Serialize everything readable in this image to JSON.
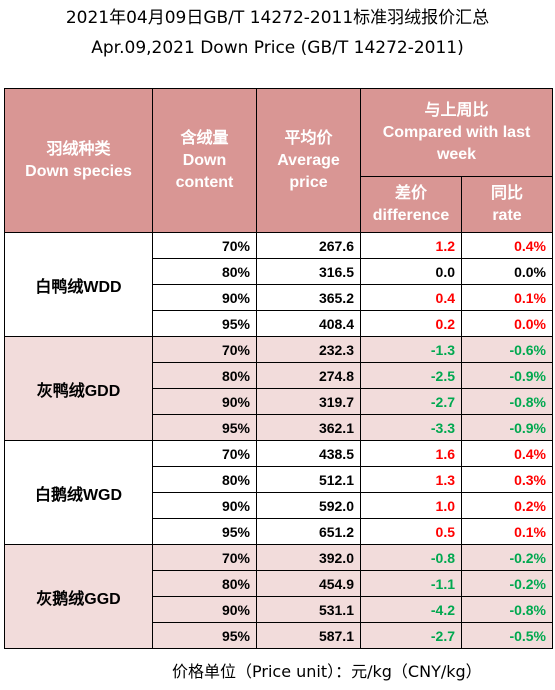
{
  "title_cn": "2021年04月09日GB/T 14272-2011标准羽绒报价汇总",
  "title_en": "Apr.09,2021 Down Price (GB/T 14272-2011)",
  "headers": {
    "species": "羽绒种类\nDown species",
    "content": "含绒量\nDown\ncontent",
    "average": "平均价\nAverage\nprice",
    "compared": "与上周比\nCompared with last\nweek",
    "difference": "差价\ndifference",
    "rate": "同比\nrate"
  },
  "groups": [
    {
      "species": "白鸭绒WDD",
      "rows": [
        {
          "content": "70%",
          "price": "267.6",
          "diff": "1.2",
          "rate": "0.4%",
          "trend": "pos"
        },
        {
          "content": "80%",
          "price": "316.5",
          "diff": "0.0",
          "rate": "0.0%",
          "trend": "zero"
        },
        {
          "content": "90%",
          "price": "365.2",
          "diff": "0.4",
          "rate": "0.1%",
          "trend": "pos"
        },
        {
          "content": "95%",
          "price": "408.4",
          "diff": "0.2",
          "rate": "0.0%",
          "trend": "pos"
        }
      ]
    },
    {
      "species": "灰鸭绒GDD",
      "rows": [
        {
          "content": "70%",
          "price": "232.3",
          "diff": "-1.3",
          "rate": "-0.6%",
          "trend": "neg"
        },
        {
          "content": "80%",
          "price": "274.8",
          "diff": "-2.5",
          "rate": "-0.9%",
          "trend": "neg"
        },
        {
          "content": "90%",
          "price": "319.7",
          "diff": "-2.7",
          "rate": "-0.8%",
          "trend": "neg"
        },
        {
          "content": "95%",
          "price": "362.1",
          "diff": "-3.3",
          "rate": "-0.9%",
          "trend": "neg"
        }
      ]
    },
    {
      "species": "白鹅绒WGD",
      "rows": [
        {
          "content": "70%",
          "price": "438.5",
          "diff": "1.6",
          "rate": "0.4%",
          "trend": "pos"
        },
        {
          "content": "80%",
          "price": "512.1",
          "diff": "1.3",
          "rate": "0.3%",
          "trend": "pos"
        },
        {
          "content": "90%",
          "price": "592.0",
          "diff": "1.0",
          "rate": "0.2%",
          "trend": "pos"
        },
        {
          "content": "95%",
          "price": "651.2",
          "diff": "0.5",
          "rate": "0.1%",
          "trend": "pos"
        }
      ]
    },
    {
      "species": "灰鹅绒GGD",
      "rows": [
        {
          "content": "70%",
          "price": "392.0",
          "diff": "-0.8",
          "rate": "-0.2%",
          "trend": "neg"
        },
        {
          "content": "80%",
          "price": "454.9",
          "diff": "-1.1",
          "rate": "-0.2%",
          "trend": "neg"
        },
        {
          "content": "90%",
          "price": "531.1",
          "diff": "-4.2",
          "rate": "-0.8%",
          "trend": "neg"
        },
        {
          "content": "95%",
          "price": "587.1",
          "diff": "-2.7",
          "rate": "-0.5%",
          "trend": "neg"
        }
      ]
    }
  ],
  "unit_note": "价格单位（Price unit）：元/kg（CNY/kg）",
  "colors": {
    "header_bg": "#d99694",
    "band_pink": "#f2dcdb",
    "positive": "#ff0000",
    "negative": "#00a84f"
  }
}
